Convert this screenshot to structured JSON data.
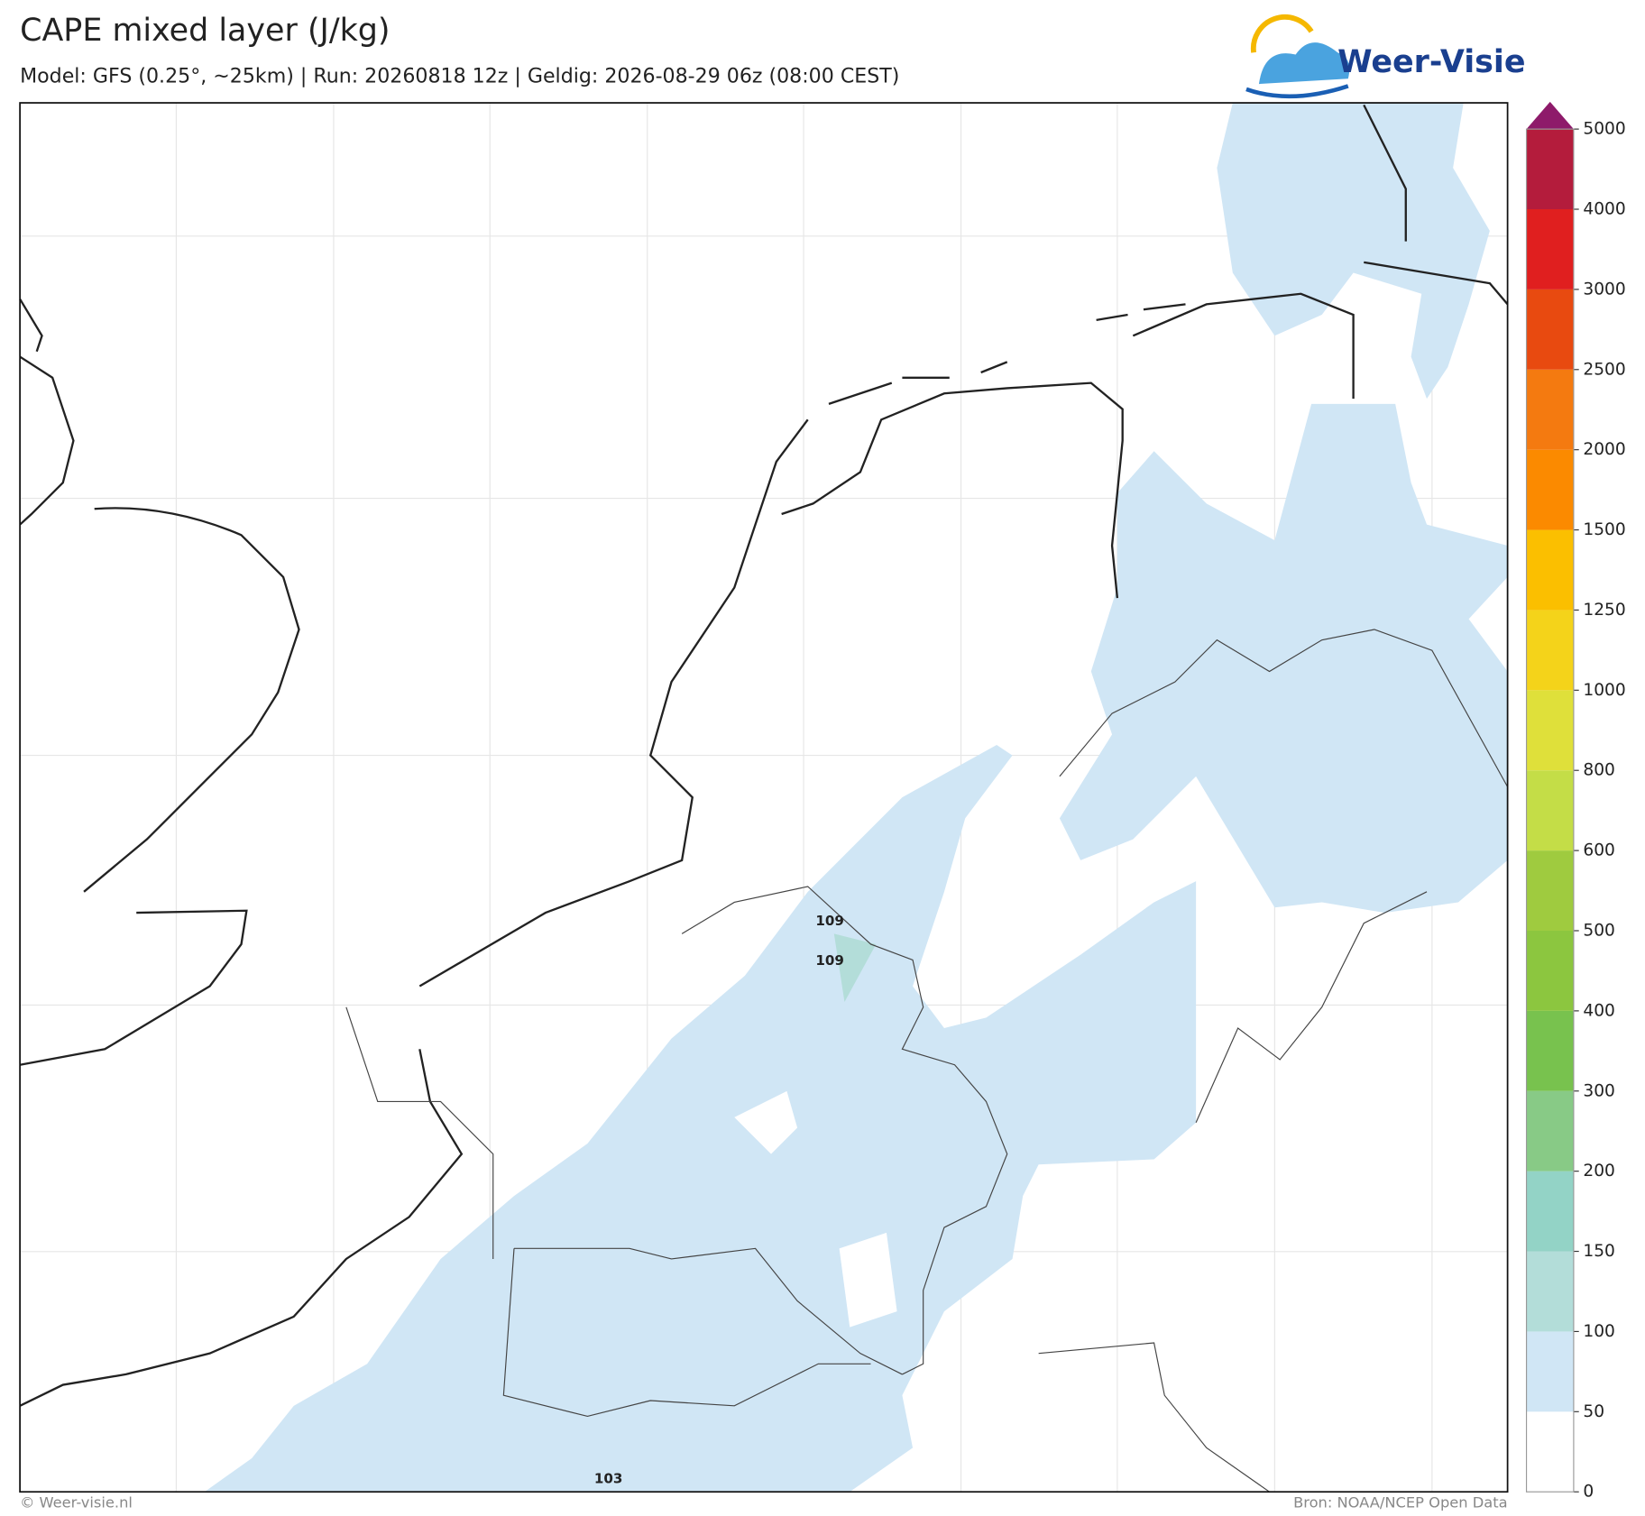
{
  "header": {
    "title": "CAPE mixed layer (J/kg)",
    "subtitle": "Model: GFS (0.25°, ~25km)  |  Run: 20260818 12z  |  Geldig: 2026-08-29 06z (08:00 CEST)",
    "logo": "Weer-Visie"
  },
  "colorbar": {
    "levels": [
      0,
      50,
      100,
      150,
      200,
      300,
      400,
      500,
      600,
      800,
      1000,
      1250,
      1500,
      2000,
      2500,
      3000,
      4000,
      5000
    ],
    "colors": [
      "#ffffff",
      "#d0e6f5",
      "#b3ddd9",
      "#93d3c6",
      "#88ca86",
      "#78c24e",
      "#8cc63f",
      "#9fcb3f",
      "#c4dd47",
      "#dfe03a",
      "#f4d31a",
      "#fbbf00",
      "#fb8a00",
      "#f47a10",
      "#e84a10",
      "#e01f1f",
      "#b41c3c",
      "#8e1a6a"
    ]
  },
  "point_values": [
    109,
    109,
    103
  ],
  "footer": {
    "left": "© Weer-visie.nl",
    "right": "Bron: NOAA/NCEP Open Data"
  }
}
